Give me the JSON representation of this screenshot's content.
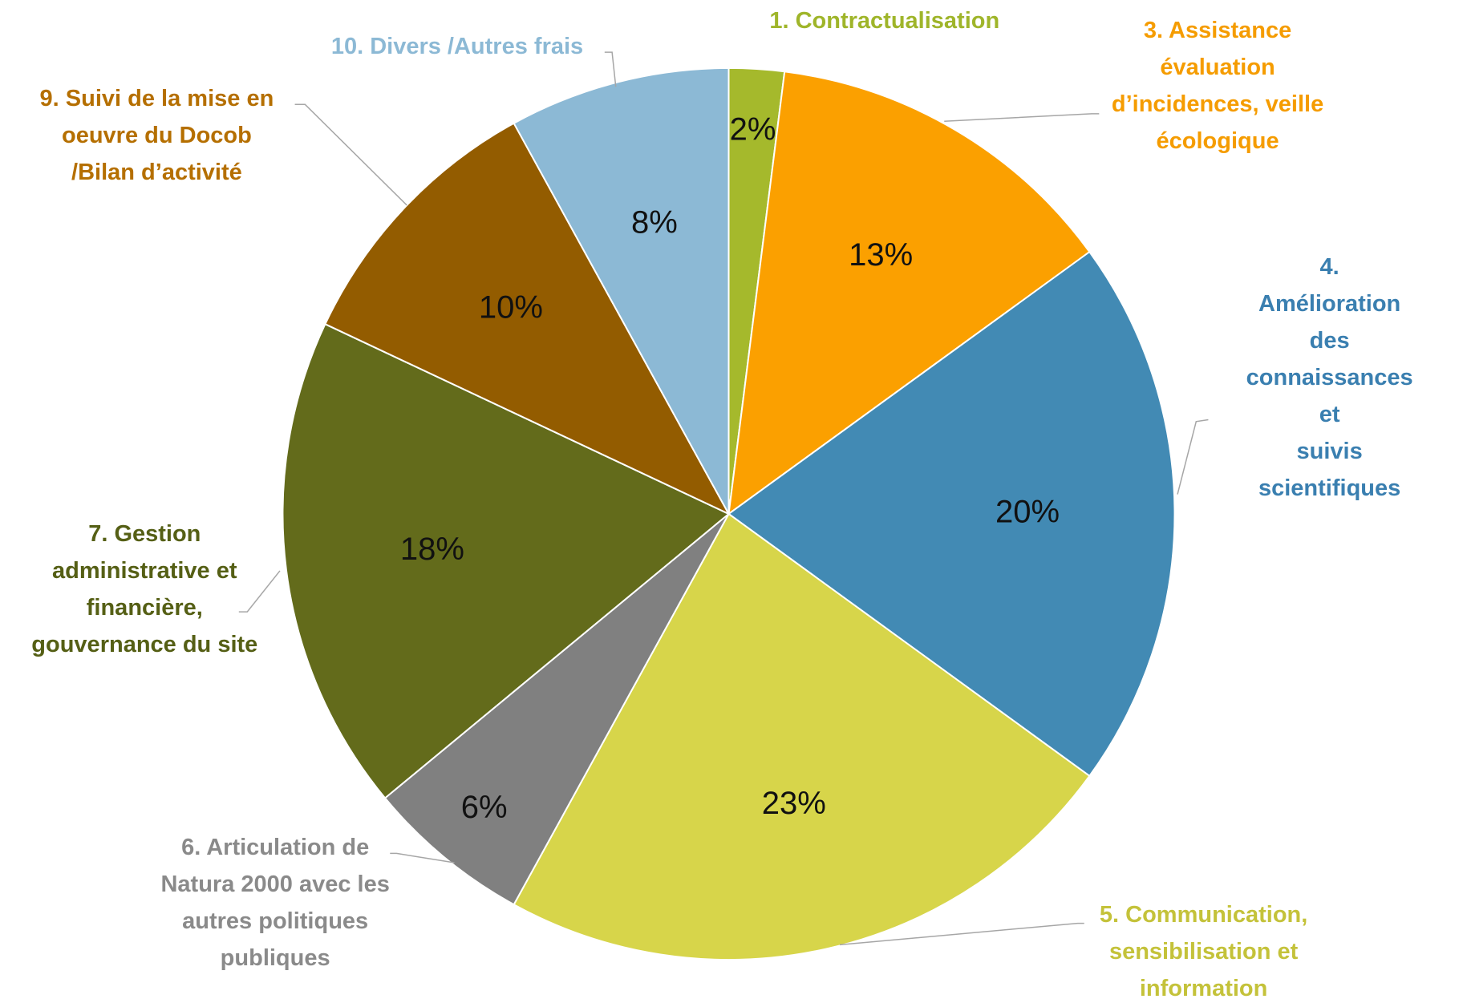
{
  "chart_data": {
    "type": "pie",
    "categories": [
      "1. Contractualisation",
      "3. Assistance\névaluation\nd’incidences, veille\nécologique",
      "4. Amélioration des\nconnaissances et\nsuivis scientifiques",
      "5. Communication,\nsensibilisation et\ninformation",
      "6. Articulation de\nNatura 2000 avec les\nautres politiques\npubliques",
      "7. Gestion\nadministrative et\nfinancière,\ngouvernance du site",
      "9. Suivi de la mise en\noeuvre du Docob\n/Bilan d’activité",
      "10. Divers /Autres frais"
    ],
    "values": [
      2,
      13,
      20,
      23,
      6,
      18,
      10,
      8
    ],
    "value_labels": [
      "2%",
      "13%",
      "20%",
      "23%",
      "6%",
      "18%",
      "10%",
      "8%"
    ],
    "colors": [
      "#a5b92c",
      "#fba000",
      "#428ab4",
      "#d7d54a",
      "#808080",
      "#636b1b",
      "#935c00",
      "#8cb9d5"
    ],
    "label_colors": [
      "#9fb52a",
      "#f59c00",
      "#3a7fb0",
      "#c4c23a",
      "#8a8a8a",
      "#555f15",
      "#b56f00",
      "#8cb9d5"
    ]
  }
}
